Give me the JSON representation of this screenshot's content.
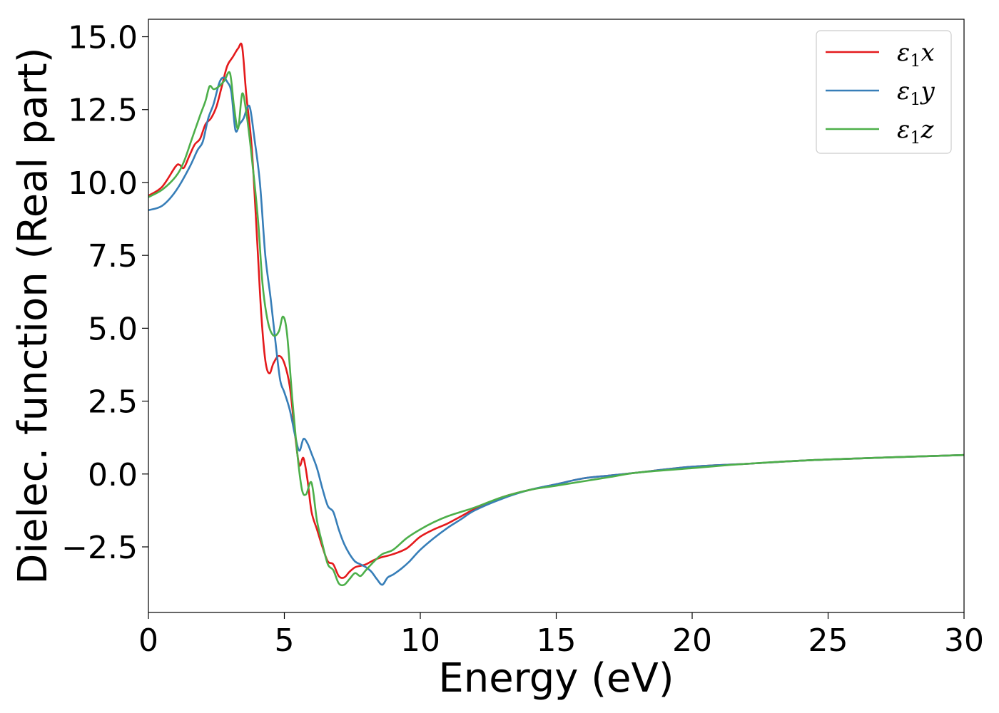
{
  "chart_data": {
    "type": "line",
    "title": "",
    "xlabel": "Energy (eV)",
    "ylabel": "Dielec. function (Real part)",
    "xlim": [
      0,
      30
    ],
    "ylim": [
      -4.75,
      15.6
    ],
    "xticks": [
      0,
      5,
      10,
      15,
      20,
      25,
      30
    ],
    "yticks": [
      -2.5,
      0.0,
      2.5,
      5.0,
      7.5,
      10.0,
      12.5,
      15.0
    ],
    "xtick_labels": [
      "0",
      "5",
      "10",
      "15",
      "20",
      "25",
      "30"
    ],
    "ytick_labels": [
      "−2.5",
      "0.0",
      "2.5",
      "5.0",
      "7.5",
      "10.0",
      "12.5",
      "15.0"
    ],
    "grid": false,
    "legend_position": "top-right",
    "series": [
      {
        "name": "ε₁x",
        "legend_base": "ε",
        "legend_sub": "1",
        "legend_var": "x",
        "color": "#e41a1c",
        "x": [
          0,
          0.5,
          1.0,
          1.15,
          1.3,
          1.5,
          1.7,
          1.9,
          2.1,
          2.3,
          2.5,
          2.7,
          2.9,
          3.1,
          3.3,
          3.45,
          3.6,
          3.8,
          4.0,
          4.15,
          4.3,
          4.45,
          4.6,
          4.8,
          5.0,
          5.2,
          5.4,
          5.55,
          5.7,
          5.85,
          6.0,
          6.2,
          6.4,
          6.6,
          6.8,
          7.0,
          7.2,
          7.4,
          7.6,
          7.8,
          8.0,
          8.3,
          8.6,
          9.0,
          9.5,
          10.0,
          10.5,
          11.0,
          11.5,
          12.0,
          13.0,
          14.0,
          15.0,
          16.0,
          17.0,
          18.0,
          20.0,
          22.0,
          25.0,
          30.0
        ],
        "y": [
          9.55,
          9.85,
          10.55,
          10.6,
          10.5,
          10.9,
          11.3,
          11.5,
          12.0,
          12.2,
          12.6,
          13.3,
          14.0,
          14.3,
          14.6,
          14.65,
          13.0,
          11.2,
          8.0,
          5.5,
          3.9,
          3.45,
          3.8,
          4.05,
          3.8,
          3.0,
          1.3,
          0.3,
          0.55,
          -0.2,
          -1.3,
          -1.9,
          -2.5,
          -3.0,
          -3.1,
          -3.5,
          -3.55,
          -3.35,
          -3.2,
          -3.15,
          -3.1,
          -2.95,
          -2.85,
          -2.75,
          -2.55,
          -2.15,
          -1.9,
          -1.7,
          -1.45,
          -1.2,
          -0.8,
          -0.55,
          -0.35,
          -0.15,
          -0.05,
          0.05,
          0.25,
          0.35,
          0.5,
          0.65
        ]
      },
      {
        "name": "ε₁y",
        "legend_base": "ε",
        "legend_sub": "1",
        "legend_var": "y",
        "color": "#377eb8",
        "x": [
          0,
          0.5,
          1.0,
          1.5,
          1.8,
          2.0,
          2.2,
          2.4,
          2.6,
          2.75,
          2.9,
          3.05,
          3.2,
          3.35,
          3.5,
          3.65,
          3.75,
          3.9,
          4.1,
          4.3,
          4.5,
          4.7,
          4.85,
          5.0,
          5.2,
          5.4,
          5.55,
          5.7,
          5.85,
          6.0,
          6.2,
          6.4,
          6.6,
          6.8,
          7.0,
          7.2,
          7.4,
          7.6,
          7.8,
          8.0,
          8.2,
          8.4,
          8.6,
          8.8,
          9.0,
          9.3,
          9.6,
          10.0,
          10.5,
          11.0,
          11.5,
          12.0,
          13.0,
          14.0,
          15.0,
          16.0,
          17.0,
          18.0,
          20.0,
          22.0,
          25.0,
          30.0
        ],
        "y": [
          9.05,
          9.2,
          9.7,
          10.5,
          11.1,
          11.4,
          12.2,
          12.7,
          13.4,
          13.6,
          13.45,
          13.1,
          11.8,
          12.0,
          12.2,
          12.6,
          12.5,
          11.5,
          10.0,
          7.5,
          6.0,
          4.3,
          3.2,
          2.8,
          2.2,
          1.3,
          0.8,
          1.2,
          1.05,
          0.7,
          0.2,
          -0.5,
          -1.1,
          -1.3,
          -1.9,
          -2.4,
          -2.75,
          -3.0,
          -3.1,
          -3.2,
          -3.35,
          -3.6,
          -3.8,
          -3.55,
          -3.45,
          -3.25,
          -3.0,
          -2.6,
          -2.2,
          -1.85,
          -1.55,
          -1.25,
          -0.85,
          -0.55,
          -0.35,
          -0.15,
          -0.05,
          0.05,
          0.25,
          0.35,
          0.5,
          0.65
        ]
      },
      {
        "name": "ε₁z",
        "legend_base": "ε",
        "legend_sub": "1",
        "legend_var": "z",
        "color": "#4daf4a",
        "x": [
          0,
          0.5,
          1.0,
          1.3,
          1.6,
          1.9,
          2.1,
          2.25,
          2.4,
          2.6,
          2.8,
          3.0,
          3.15,
          3.3,
          3.45,
          3.6,
          3.75,
          3.9,
          4.05,
          4.2,
          4.4,
          4.6,
          4.8,
          4.95,
          5.1,
          5.3,
          5.5,
          5.65,
          5.8,
          6.0,
          6.2,
          6.4,
          6.6,
          6.8,
          7.0,
          7.2,
          7.4,
          7.6,
          7.8,
          8.0,
          8.3,
          8.6,
          9.0,
          9.5,
          10.0,
          10.5,
          11.0,
          11.5,
          12.0,
          13.0,
          14.0,
          15.0,
          16.0,
          17.0,
          18.0,
          20.0,
          22.0,
          25.0,
          30.0
        ],
        "y": [
          9.5,
          9.75,
          10.2,
          10.7,
          11.5,
          12.3,
          12.8,
          13.3,
          13.2,
          13.3,
          13.5,
          13.75,
          12.6,
          11.85,
          13.05,
          12.4,
          11.3,
          10.0,
          8.5,
          6.5,
          5.2,
          4.75,
          4.9,
          5.4,
          4.8,
          2.5,
          0.5,
          -0.55,
          -0.7,
          -0.3,
          -1.6,
          -2.4,
          -3.1,
          -3.3,
          -3.75,
          -3.8,
          -3.6,
          -3.4,
          -3.5,
          -3.3,
          -3.0,
          -2.75,
          -2.6,
          -2.2,
          -1.9,
          -1.65,
          -1.45,
          -1.3,
          -1.15,
          -0.8,
          -0.55,
          -0.4,
          -0.25,
          -0.1,
          0.05,
          0.2,
          0.35,
          0.5,
          0.65
        ]
      }
    ]
  }
}
